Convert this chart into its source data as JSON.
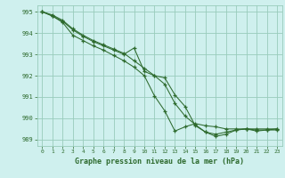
{
  "title": "Graphe pression niveau de la mer (hPa)",
  "bg_color": "#cff0ee",
  "grid_color": "#99ccbb",
  "line_color": "#2d6a2d",
  "marker_color": "#2d6a2d",
  "xlim": [
    -0.5,
    23.5
  ],
  "ylim": [
    988.7,
    995.3
  ],
  "yticks": [
    989,
    990,
    991,
    992,
    993,
    994,
    995
  ],
  "xticks": [
    0,
    1,
    2,
    3,
    4,
    5,
    6,
    7,
    8,
    9,
    10,
    11,
    12,
    13,
    14,
    15,
    16,
    17,
    18,
    19,
    20,
    21,
    22,
    23
  ],
  "series": [
    [
      995.0,
      994.8,
      994.55,
      994.15,
      993.85,
      993.6,
      993.4,
      993.2,
      993.0,
      993.3,
      992.2,
      992.0,
      991.9,
      991.1,
      990.55,
      989.65,
      989.35,
      989.25,
      989.35,
      989.45,
      989.5,
      989.4,
      989.45,
      989.5
    ],
    [
      995.0,
      994.85,
      994.6,
      994.2,
      993.9,
      993.65,
      993.45,
      993.25,
      993.05,
      992.7,
      992.35,
      992.0,
      991.6,
      990.7,
      990.1,
      989.7,
      989.35,
      989.15,
      989.25,
      989.45,
      989.5,
      989.5,
      989.5,
      989.5
    ],
    [
      995.0,
      994.8,
      994.5,
      993.9,
      993.65,
      993.4,
      993.2,
      992.95,
      992.7,
      992.4,
      992.0,
      991.05,
      990.35,
      989.4,
      989.6,
      989.75,
      989.65,
      989.6,
      989.5,
      989.5,
      989.5,
      989.45,
      989.45,
      989.45
    ]
  ]
}
